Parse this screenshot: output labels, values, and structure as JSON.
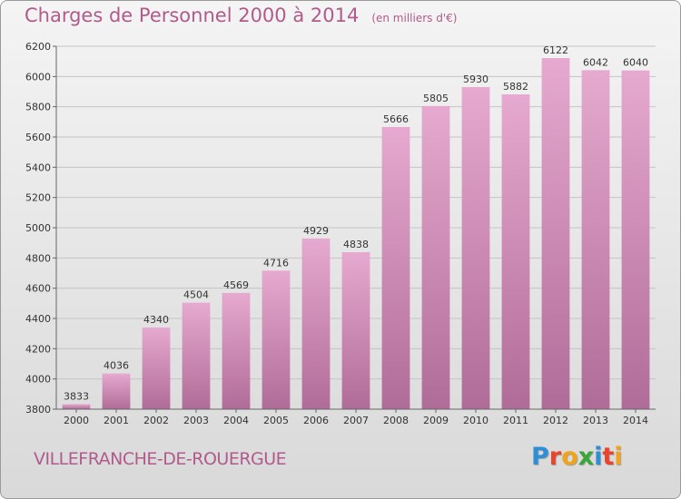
{
  "header": {
    "title": "Charges de Personnel 2000 à 2014",
    "unit": "(en milliers d'€)"
  },
  "footer": {
    "city": "VILLEFRANCHE-DE-ROUERGUE",
    "logo": {
      "letters": [
        "P",
        "r",
        "o",
        "x",
        "i",
        "t",
        "i"
      ],
      "colors": [
        "#2f8fd6",
        "#e8452c",
        "#f0a31c",
        "#3aa63a",
        "#2f8fd6",
        "#e8452c",
        "#f0a31c"
      ]
    }
  },
  "colors": {
    "bar_top": "#e6a9cf",
    "bar_bottom": "#b06c98",
    "text": "#333333",
    "accent": "#b05b8c"
  },
  "chart_data": {
    "type": "bar",
    "categories": [
      "2000",
      "2001",
      "2002",
      "2003",
      "2004",
      "2005",
      "2006",
      "2007",
      "2008",
      "2009",
      "2010",
      "2011",
      "2012",
      "2013",
      "2014"
    ],
    "values": [
      3833,
      4036,
      4340,
      4504,
      4569,
      4716,
      4929,
      4838,
      5666,
      5805,
      5930,
      5882,
      6122,
      6042,
      6040
    ],
    "title": "Charges de Personnel 2000 à 2014",
    "ylim": [
      3800,
      6200
    ],
    "yticks": [
      3800,
      4000,
      4200,
      4400,
      4600,
      4800,
      5000,
      5200,
      5400,
      5600,
      5800,
      6000,
      6200
    ],
    "grid": true,
    "data_labels": true
  }
}
